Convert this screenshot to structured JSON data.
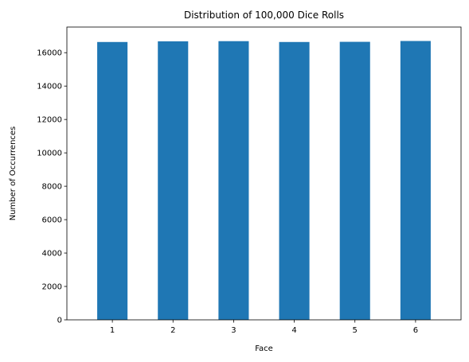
{
  "chart_data": {
    "type": "bar",
    "title": "Distribution of 100,000 Dice Rolls",
    "xlabel": "Face",
    "ylabel": "Number of Occurrences",
    "categories": [
      "1",
      "2",
      "3",
      "4",
      "5",
      "6"
    ],
    "values": [
      16640,
      16680,
      16690,
      16640,
      16650,
      16700
    ],
    "ylim": [
      0,
      17535
    ],
    "yticks": [
      "0",
      "2000",
      "4000",
      "6000",
      "8000",
      "10000",
      "12000",
      "14000",
      "16000"
    ],
    "bar_color": "#1f77b4",
    "grid": false,
    "legend": "none"
  }
}
